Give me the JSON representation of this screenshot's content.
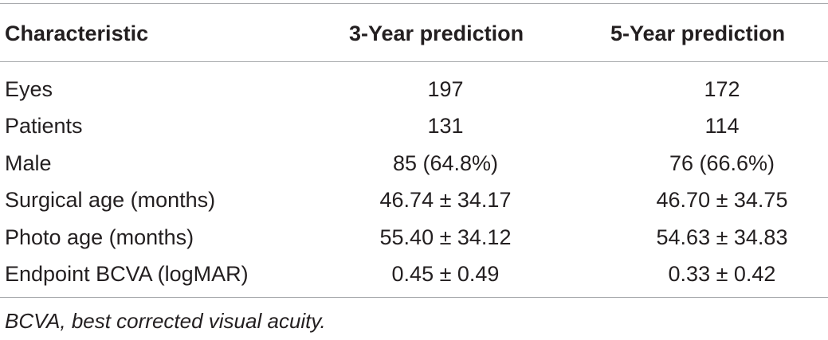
{
  "table": {
    "columns": [
      "Characteristic",
      "3-Year prediction",
      "5-Year prediction"
    ],
    "rows": [
      [
        "Eyes",
        "197",
        "172"
      ],
      [
        "Patients",
        "131",
        "114"
      ],
      [
        "Male",
        "85 (64.8%)",
        "76 (66.6%)"
      ],
      [
        "Surgical age (months)",
        "46.74 ± 34.17",
        "46.70 ± 34.75"
      ],
      [
        "Photo age (months)",
        "55.40 ± 34.12",
        "54.63 ± 34.83"
      ],
      [
        "Endpoint BCVA (logMAR)",
        "0.45 ± 0.49",
        "0.33 ± 0.42"
      ]
    ],
    "footnote": "BCVA, best corrected visual acuity."
  }
}
